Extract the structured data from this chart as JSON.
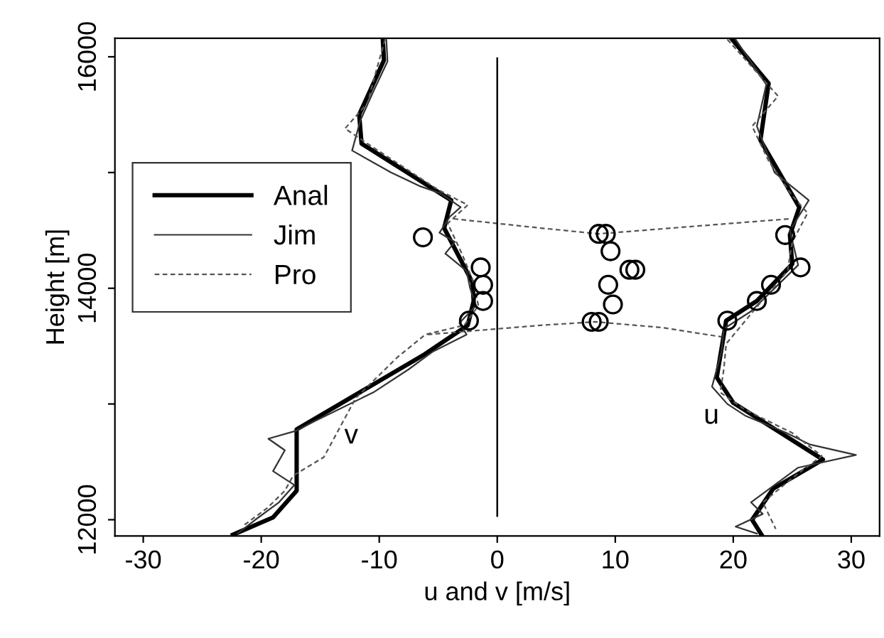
{
  "chart_data": {
    "type": "line",
    "xlabel": "u and v [m/s]",
    "ylabel": "Height [m]",
    "xlim": [
      -32.4,
      32.4
    ],
    "ylim": [
      11860,
      16160
    ],
    "xticks": [
      -30,
      -20,
      -10,
      0,
      10,
      20,
      30
    ],
    "yticks": [
      12000,
      {
        "value": 13000,
        "label": null
      },
      14000,
      {
        "value": 15000,
        "label": null
      },
      16000
    ],
    "grid": false,
    "legend": "left",
    "marker": "none",
    "ref_lines": [
      {
        "axis": "x",
        "value": 0,
        "color": "#000000"
      }
    ],
    "annotations": [
      "v",
      "u"
    ],
    "series": [
      {
        "name": "Anal",
        "color": "#000000",
        "line_style": "solid",
        "x": [
          -9.7,
          -9.6,
          -11.7,
          -11.5,
          -3.9,
          -4.5,
          -2.1,
          -2.0,
          -2.5,
          -6.3,
          -17.0,
          -17.0,
          -19.0,
          -22.4
        ],
        "values": [
          16150,
          15970,
          15500,
          15250,
          14760,
          14520,
          14050,
          13890,
          13680,
          13420,
          12780,
          12250,
          12020,
          11870
        ]
      },
      {
        "name": "Jim",
        "color": "#333333",
        "line_style": "solid",
        "x": [
          -9.4,
          -9.3,
          -10.5,
          -11.6,
          -12.3,
          -9.0,
          -6.5,
          -4.8,
          -3.1,
          -4.0,
          -4.9,
          -3.6,
          -4.4,
          -2.6,
          -2.3,
          -1.8,
          -3.2,
          -2.6,
          -5.5,
          -7.5,
          -10.5,
          -13.5,
          -15.5,
          -17.0,
          -19.4,
          -18.0,
          -19.0,
          -17.2,
          -18.5,
          -20.5,
          -22.0
        ],
        "values": [
          16150,
          15960,
          15700,
          15450,
          15190,
          15000,
          14880,
          14820,
          14700,
          14620,
          14480,
          14400,
          14300,
          14150,
          14000,
          13850,
          13700,
          13600,
          13450,
          13300,
          13100,
          12950,
          12850,
          12770,
          12700,
          12600,
          12420,
          12300,
          12150,
          12000,
          11880
        ]
      },
      {
        "name": "Pro",
        "color": "#555555",
        "line_style": "dashed",
        "x": [
          -9.5,
          -10.2,
          -11.0,
          -12.9,
          -11.0,
          -8.0,
          -5.0,
          -2.5,
          -4.2,
          -3.0,
          -2.0,
          -1.6,
          -2.8,
          -6.1,
          -8.5,
          -12.0,
          -14.7,
          -17.3,
          -18.0,
          -19.5,
          -21.5
        ],
        "values": [
          16150,
          15900,
          15600,
          15380,
          15250,
          15050,
          14850,
          14720,
          14560,
          14300,
          14050,
          13850,
          13680,
          13600,
          13400,
          13050,
          12540,
          12380,
          12250,
          12100,
          11950
        ]
      },
      {
        "color": "#000000",
        "line_style": "solid",
        "x": [
          19.9,
          23.0,
          22.3,
          25.6,
          24.8,
          25.0,
          22.0,
          19.4,
          18.6,
          20.0,
          27.6,
          23.4,
          21.6,
          22.4
        ],
        "values": [
          16150,
          15770,
          15280,
          14700,
          14460,
          14210,
          13890,
          13720,
          13230,
          13010,
          12520,
          12270,
          12000,
          11870
        ]
      },
      {
        "color": "#333333",
        "line_style": "solid",
        "x": [
          20.2,
          22.8,
          22.0,
          23.5,
          26.4,
          24.8,
          25.5,
          23.0,
          21.5,
          19.2,
          19.0,
          18.2,
          19.5,
          21.0,
          24.5,
          26.5,
          30.4,
          25.5,
          23.5,
          21.5,
          22.5,
          20.2,
          22.0
        ],
        "values": [
          16150,
          15760,
          15400,
          15000,
          14760,
          14500,
          14200,
          13950,
          13800,
          13650,
          13450,
          13150,
          13000,
          12900,
          12750,
          12650,
          12560,
          12450,
          12300,
          12150,
          12050,
          11940,
          11880
        ]
      },
      {
        "color": "#555555",
        "line_style": "dashed",
        "x": [
          19.5,
          23.8,
          21.6,
          23.0,
          25.0,
          26.3,
          25.0,
          24.6,
          22.5,
          19.4,
          19.2,
          18.9,
          21.0,
          25.0,
          27.5,
          25.5,
          22.5,
          23.6
        ],
        "values": [
          16150,
          15660,
          15400,
          15100,
          14800,
          14650,
          14400,
          14150,
          13900,
          13520,
          13300,
          13100,
          12950,
          12750,
          12550,
          12400,
          12150,
          11920
        ]
      },
      {
        "type": "scatter",
        "marker": "circle",
        "color": "#000000",
        "x": [
          -6.3,
          -1.4,
          -1.2,
          -1.2,
          -2.4
        ],
        "values": [
          14440,
          14180,
          14030,
          13890,
          13720
        ]
      },
      {
        "type": "scatter",
        "marker": "circle",
        "color": "#000000",
        "x": [
          8.6,
          9.2,
          9.6,
          11.2,
          11.7,
          9.4,
          9.8,
          8.0,
          8.6
        ],
        "values": [
          14470,
          14470,
          14320,
          14160,
          14160,
          14030,
          13860,
          13710,
          13710
        ]
      },
      {
        "type": "scatter",
        "marker": "circle",
        "color": "#000000",
        "x": [
          24.4,
          25.7,
          23.2,
          22.0,
          19.5
        ],
        "values": [
          14460,
          14180,
          14030,
          13890,
          13720
        ]
      },
      {
        "color": "#555555",
        "line_style": "dashed",
        "x": [
          -3.7,
          3.7,
          8.6,
          16.0,
          24.8
        ],
        "values": [
          14600,
          14520,
          14470,
          14530,
          14600
        ]
      },
      {
        "color": "#555555",
        "line_style": "dashed",
        "x": [
          -5.9,
          3.7,
          8.3,
          14.0,
          19.0
        ],
        "values": [
          13600,
          13680,
          13710,
          13660,
          13580
        ]
      }
    ]
  }
}
